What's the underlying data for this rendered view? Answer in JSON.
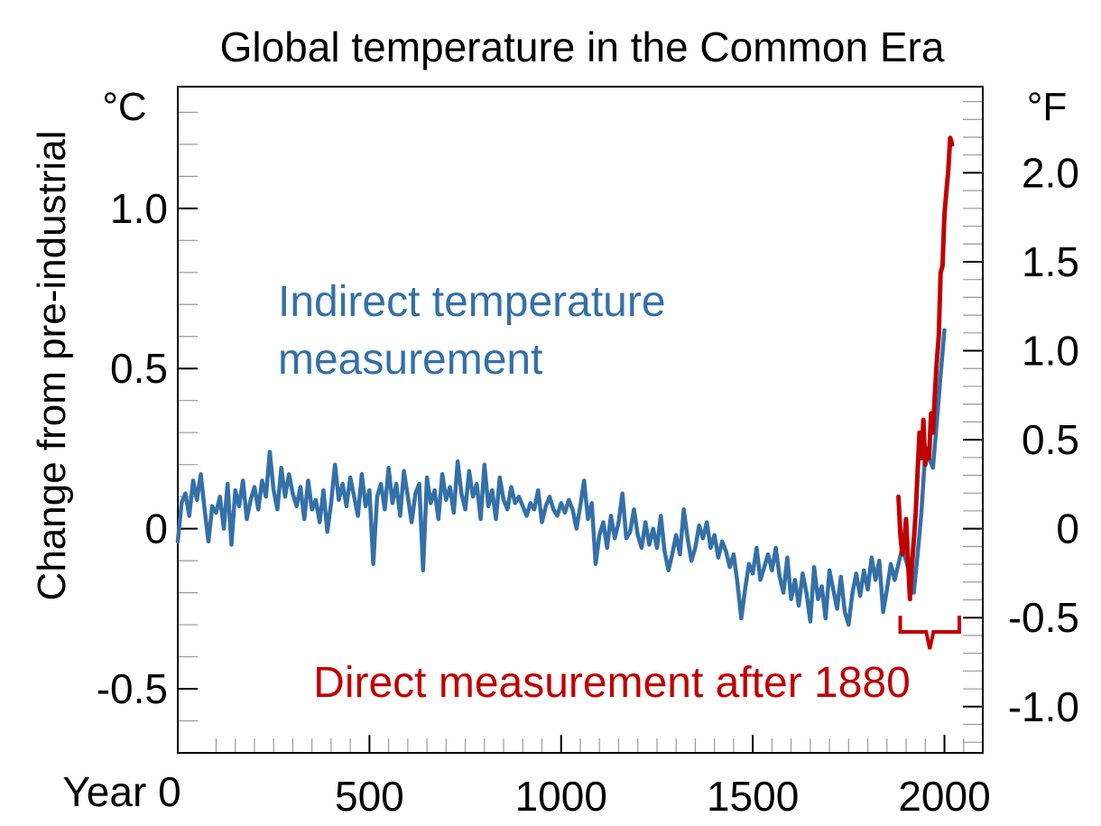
{
  "chart_data": {
    "type": "line",
    "title": "Global temperature in the Common Era",
    "ylabel": "Change from pre-industrial",
    "y_unit_left": "°C",
    "y_unit_right": "°F",
    "xlabel_prefix": "Year 0",
    "x_ticks": [
      {
        "value": 0,
        "label": "Year 0"
      },
      {
        "value": 500,
        "label": "500"
      },
      {
        "value": 1000,
        "label": "1000"
      },
      {
        "value": 1500,
        "label": "1500"
      },
      {
        "value": 2000,
        "label": "2000"
      }
    ],
    "y_ticks_left": [
      {
        "value": 1.0,
        "label": "1.0"
      },
      {
        "value": 0.5,
        "label": "0.5"
      },
      {
        "value": 0,
        "label": "0"
      },
      {
        "value": -0.5,
        "label": "-0.5"
      }
    ],
    "y_ticks_right": [
      {
        "value": 2.0,
        "label": "2.0"
      },
      {
        "value": 1.5,
        "label": "1.5"
      },
      {
        "value": 1.0,
        "label": "1.0"
      },
      {
        "value": 0.5,
        "label": "0.5"
      },
      {
        "value": 0,
        "label": "0"
      },
      {
        "value": -0.5,
        "label": "-0.5"
      },
      {
        "value": -1.0,
        "label": "-1.0"
      }
    ],
    "xlim": [
      0,
      2100
    ],
    "ylim": [
      -0.7,
      1.38
    ],
    "grid": false,
    "annotations": {
      "indirect_line1": "Indirect temperature",
      "indirect_line2": "measurement",
      "direct": "Direct measurement after 1880",
      "bracket_range": [
        1880,
        2020
      ]
    },
    "colors": {
      "indirect": "#3470a8",
      "direct": "#c00000"
    },
    "series": [
      {
        "id": "indirect",
        "x": [
          0,
          10,
          20,
          30,
          40,
          50,
          60,
          70,
          80,
          90,
          100,
          110,
          120,
          130,
          140,
          150,
          160,
          170,
          180,
          190,
          200,
          210,
          220,
          230,
          240,
          250,
          260,
          270,
          280,
          290,
          300,
          310,
          320,
          330,
          340,
          350,
          360,
          370,
          380,
          390,
          400,
          410,
          420,
          430,
          440,
          450,
          460,
          470,
          480,
          490,
          500,
          510,
          520,
          530,
          540,
          550,
          560,
          570,
          580,
          590,
          600,
          610,
          620,
          630,
          640,
          650,
          660,
          670,
          680,
          690,
          700,
          710,
          720,
          730,
          740,
          750,
          760,
          770,
          780,
          790,
          800,
          810,
          820,
          830,
          840,
          850,
          860,
          870,
          880,
          890,
          900,
          910,
          920,
          930,
          940,
          950,
          960,
          970,
          980,
          990,
          1000,
          1010,
          1020,
          1030,
          1040,
          1050,
          1060,
          1070,
          1080,
          1090,
          1100,
          1110,
          1120,
          1130,
          1140,
          1150,
          1160,
          1170,
          1180,
          1190,
          1200,
          1210,
          1220,
          1230,
          1240,
          1250,
          1260,
          1270,
          1280,
          1290,
          1300,
          1310,
          1320,
          1330,
          1340,
          1350,
          1360,
          1370,
          1380,
          1390,
          1400,
          1410,
          1420,
          1430,
          1440,
          1450,
          1460,
          1470,
          1480,
          1490,
          1500,
          1510,
          1520,
          1530,
          1540,
          1550,
          1560,
          1570,
          1580,
          1590,
          1600,
          1610,
          1620,
          1630,
          1640,
          1650,
          1660,
          1670,
          1680,
          1690,
          1700,
          1710,
          1720,
          1730,
          1740,
          1750,
          1760,
          1770,
          1780,
          1790,
          1800,
          1810,
          1820,
          1830,
          1840,
          1850,
          1860,
          1870,
          1880,
          1890,
          1900,
          1910,
          1920,
          1930,
          1940,
          1950,
          1960,
          1970,
          1980,
          1990,
          2000
        ],
        "y": [
          -0.04,
          0.08,
          0.11,
          0.04,
          0.15,
          0.09,
          0.17,
          0.06,
          -0.04,
          0.07,
          0.05,
          0.1,
          0.0,
          0.14,
          -0.05,
          0.12,
          0.07,
          0.15,
          0.03,
          0.09,
          0.13,
          0.06,
          0.15,
          0.1,
          0.24,
          0.12,
          0.06,
          0.19,
          0.1,
          0.17,
          0.11,
          0.07,
          0.13,
          0.03,
          0.15,
          0.06,
          0.09,
          0.02,
          0.12,
          -0.01,
          0.08,
          0.2,
          0.09,
          0.14,
          0.07,
          0.16,
          0.1,
          0.04,
          0.17,
          0.07,
          0.12,
          -0.11,
          0.1,
          0.14,
          0.06,
          0.19,
          0.08,
          0.14,
          0.04,
          0.18,
          0.1,
          0.02,
          0.11,
          0.14,
          -0.13,
          0.16,
          0.08,
          0.12,
          0.03,
          0.17,
          0.09,
          0.13,
          0.05,
          0.21,
          0.11,
          0.06,
          0.18,
          0.1,
          0.14,
          0.03,
          0.2,
          0.07,
          0.12,
          0.03,
          0.16,
          0.09,
          0.06,
          0.13,
          0.08,
          0.1,
          0.07,
          0.04,
          0.08,
          0.06,
          0.12,
          0.02,
          0.07,
          0.1,
          0.06,
          0.04,
          0.08,
          0.05,
          0.09,
          0.06,
          0.0,
          0.07,
          0.15,
          0.03,
          0.08,
          -0.11,
          -0.02,
          0.02,
          -0.06,
          0.04,
          -0.03,
          0.02,
          0.11,
          -0.03,
          -0.01,
          0.06,
          -0.02,
          -0.06,
          0.02,
          -0.05,
          0.0,
          -0.06,
          0.04,
          -0.07,
          -0.13,
          -0.08,
          -0.02,
          -0.08,
          0.06,
          -0.03,
          -0.1,
          -0.06,
          0.01,
          -0.03,
          0.02,
          -0.06,
          -0.02,
          -0.09,
          -0.04,
          -0.07,
          -0.12,
          -0.08,
          -0.17,
          -0.28,
          -0.19,
          -0.11,
          -0.14,
          -0.06,
          -0.16,
          -0.12,
          -0.08,
          -0.13,
          -0.06,
          -0.15,
          -0.2,
          -0.09,
          -0.22,
          -0.16,
          -0.24,
          -0.14,
          -0.2,
          -0.29,
          -0.12,
          -0.22,
          -0.18,
          -0.28,
          -0.13,
          -0.19,
          -0.25,
          -0.15,
          -0.26,
          -0.3,
          -0.2,
          -0.14,
          -0.21,
          -0.13,
          -0.19,
          -0.09,
          -0.16,
          -0.1,
          -0.26,
          -0.19,
          -0.11,
          -0.16,
          -0.11,
          -0.06,
          -0.1,
          -0.14,
          -0.2,
          -0.08,
          0.05,
          0.24,
          0.22,
          0.19,
          0.33,
          0.48,
          0.62
        ]
      },
      {
        "id": "direct",
        "x": [
          1880,
          1885,
          1890,
          1895,
          1900,
          1905,
          1910,
          1915,
          1920,
          1925,
          1930,
          1935,
          1940,
          1945,
          1950,
          1955,
          1960,
          1965,
          1970,
          1975,
          1980,
          1985,
          1990,
          1995,
          2000,
          2005,
          2010,
          2015,
          2020
        ],
        "y": [
          0.1,
          -0.02,
          -0.08,
          -0.04,
          0.03,
          -0.1,
          -0.22,
          -0.12,
          -0.04,
          0.05,
          0.18,
          0.3,
          0.22,
          0.34,
          0.2,
          0.25,
          0.22,
          0.36,
          0.3,
          0.42,
          0.52,
          0.6,
          0.8,
          0.82,
          0.98,
          1.05,
          1.12,
          1.22,
          1.2
        ]
      }
    ]
  }
}
